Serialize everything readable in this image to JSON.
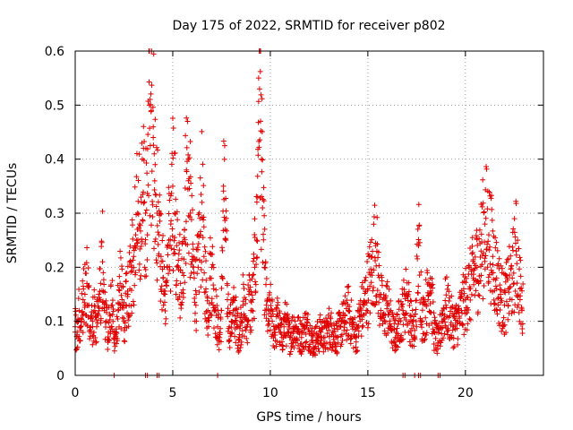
{
  "chart_data": {
    "type": "scatter",
    "title": "Day 175 of 2022, SRMTID for receiver p802",
    "xlabel": "GPS time / hours",
    "ylabel": "SRMTID / TECUs",
    "xlim": [
      0,
      24
    ],
    "ylim": [
      0,
      0.6
    ],
    "xticks": [
      0,
      5,
      10,
      15,
      20
    ],
    "yticks": [
      0,
      0.1,
      0.2,
      0.3,
      0.4,
      0.5,
      0.6
    ],
    "xtick_labels": [
      "0",
      "5",
      "10",
      "15",
      "20"
    ],
    "ytick_labels": [
      "0",
      "0.1",
      "0.2",
      "0.3",
      "0.4",
      "0.5",
      "0.6"
    ],
    "grid": true,
    "marker": "+",
    "color": "#e00000",
    "series": [
      {
        "name": "p802",
        "sample_points": [
          [
            0.0,
            0.09
          ],
          [
            0.1,
            0.08
          ],
          [
            0.2,
            0.12
          ],
          [
            0.3,
            0.1
          ],
          [
            0.4,
            0.14
          ],
          [
            0.5,
            0.15
          ],
          [
            0.6,
            0.17
          ],
          [
            0.7,
            0.13
          ],
          [
            0.8,
            0.11
          ],
          [
            0.9,
            0.1
          ],
          [
            1.0,
            0.12
          ],
          [
            1.1,
            0.09
          ],
          [
            1.2,
            0.15
          ],
          [
            1.3,
            0.17
          ],
          [
            1.4,
            0.21
          ],
          [
            1.5,
            0.12
          ],
          [
            1.6,
            0.1
          ],
          [
            1.7,
            0.08
          ],
          [
            1.8,
            0.11
          ],
          [
            1.9,
            0.13
          ],
          [
            2.0,
            0.06
          ],
          [
            2.1,
            0.08
          ],
          [
            2.2,
            0.12
          ],
          [
            2.3,
            0.17
          ],
          [
            2.4,
            0.14
          ],
          [
            2.5,
            0.1
          ],
          [
            2.6,
            0.13
          ],
          [
            2.7,
            0.15
          ],
          [
            2.8,
            0.16
          ],
          [
            2.9,
            0.2
          ],
          [
            3.0,
            0.22
          ],
          [
            3.1,
            0.26
          ],
          [
            3.2,
            0.3
          ],
          [
            3.3,
            0.28
          ],
          [
            3.4,
            0.32
          ],
          [
            3.5,
            0.42
          ],
          [
            3.6,
            0.3
          ],
          [
            3.7,
            0.26
          ],
          [
            3.8,
            0.5
          ],
          [
            3.9,
            0.49
          ],
          [
            4.0,
            0.44
          ],
          [
            4.1,
            0.39
          ],
          [
            4.2,
            0.3
          ],
          [
            4.3,
            0.26
          ],
          [
            4.4,
            0.22
          ],
          [
            4.5,
            0.18
          ],
          [
            4.6,
            0.15
          ],
          [
            4.7,
            0.2
          ],
          [
            4.8,
            0.25
          ],
          [
            4.9,
            0.28
          ],
          [
            5.0,
            0.35
          ],
          [
            5.1,
            0.3
          ],
          [
            5.2,
            0.24
          ],
          [
            5.3,
            0.2
          ],
          [
            5.4,
            0.17
          ],
          [
            5.5,
            0.19
          ],
          [
            5.6,
            0.27
          ],
          [
            5.7,
            0.38
          ],
          [
            5.8,
            0.36
          ],
          [
            5.9,
            0.3
          ],
          [
            6.0,
            0.22
          ],
          [
            6.1,
            0.18
          ],
          [
            6.2,
            0.15
          ],
          [
            6.3,
            0.2
          ],
          [
            6.4,
            0.26
          ],
          [
            6.5,
            0.32
          ],
          [
            6.6,
            0.22
          ],
          [
            6.7,
            0.16
          ],
          [
            6.8,
            0.12
          ],
          [
            6.9,
            0.18
          ],
          [
            7.0,
            0.2
          ],
          [
            7.1,
            0.16
          ],
          [
            7.2,
            0.12
          ],
          [
            7.3,
            0.09
          ],
          [
            7.4,
            0.07
          ],
          [
            7.5,
            0.12
          ],
          [
            7.6,
            0.35
          ],
          [
            7.7,
            0.27
          ],
          [
            7.8,
            0.14
          ],
          [
            7.9,
            0.09
          ],
          [
            8.0,
            0.1
          ],
          [
            8.1,
            0.12
          ],
          [
            8.2,
            0.11
          ],
          [
            8.3,
            0.09
          ],
          [
            8.4,
            0.07
          ],
          [
            8.5,
            0.1
          ],
          [
            8.6,
            0.13
          ],
          [
            8.7,
            0.11
          ],
          [
            8.8,
            0.09
          ],
          [
            8.9,
            0.15
          ],
          [
            9.0,
            0.12
          ],
          [
            9.1,
            0.14
          ],
          [
            9.2,
            0.2
          ],
          [
            9.3,
            0.25
          ],
          [
            9.35,
            0.33
          ],
          [
            9.4,
            0.55
          ],
          [
            9.45,
            0.53
          ],
          [
            9.5,
            0.47
          ],
          [
            9.55,
            0.4
          ],
          [
            9.6,
            0.31
          ],
          [
            9.7,
            0.2
          ],
          [
            9.8,
            0.13
          ],
          [
            9.9,
            0.1
          ],
          [
            10.0,
            0.12
          ],
          [
            10.1,
            0.1
          ],
          [
            10.2,
            0.08
          ],
          [
            10.3,
            0.09
          ],
          [
            10.4,
            0.11
          ],
          [
            10.5,
            0.08
          ],
          [
            10.6,
            0.07
          ],
          [
            10.7,
            0.09
          ],
          [
            10.8,
            0.1
          ],
          [
            10.9,
            0.08
          ],
          [
            11.0,
            0.07
          ],
          [
            11.2,
            0.09
          ],
          [
            11.4,
            0.08
          ],
          [
            11.6,
            0.07
          ],
          [
            11.8,
            0.09
          ],
          [
            12.0,
            0.08
          ],
          [
            12.2,
            0.06
          ],
          [
            12.4,
            0.07
          ],
          [
            12.6,
            0.08
          ],
          [
            12.8,
            0.07
          ],
          [
            13.0,
            0.09
          ],
          [
            13.2,
            0.08
          ],
          [
            13.4,
            0.07
          ],
          [
            13.6,
            0.09
          ],
          [
            13.8,
            0.1
          ],
          [
            14.0,
            0.12
          ],
          [
            14.2,
            0.09
          ],
          [
            14.4,
            0.07
          ],
          [
            14.6,
            0.11
          ],
          [
            14.8,
            0.13
          ],
          [
            15.0,
            0.16
          ],
          [
            15.2,
            0.19
          ],
          [
            15.4,
            0.24
          ],
          [
            15.6,
            0.15
          ],
          [
            15.8,
            0.11
          ],
          [
            16.0,
            0.13
          ],
          [
            16.2,
            0.09
          ],
          [
            16.4,
            0.07
          ],
          [
            16.6,
            0.1
          ],
          [
            16.8,
            0.12
          ],
          [
            17.0,
            0.15
          ],
          [
            17.2,
            0.1
          ],
          [
            17.4,
            0.07
          ],
          [
            17.6,
            0.24
          ],
          [
            17.8,
            0.1
          ],
          [
            18.0,
            0.13
          ],
          [
            18.2,
            0.18
          ],
          [
            18.4,
            0.08
          ],
          [
            18.6,
            0.06
          ],
          [
            18.8,
            0.1
          ],
          [
            19.0,
            0.13
          ],
          [
            19.2,
            0.11
          ],
          [
            19.4,
            0.09
          ],
          [
            19.6,
            0.1
          ],
          [
            19.8,
            0.12
          ],
          [
            20.0,
            0.14
          ],
          [
            20.2,
            0.16
          ],
          [
            20.4,
            0.18
          ],
          [
            20.6,
            0.2
          ],
          [
            20.8,
            0.23
          ],
          [
            21.0,
            0.28
          ],
          [
            21.2,
            0.26
          ],
          [
            21.4,
            0.22
          ],
          [
            21.6,
            0.18
          ],
          [
            21.8,
            0.15
          ],
          [
            22.0,
            0.13
          ],
          [
            22.2,
            0.16
          ],
          [
            22.4,
            0.18
          ],
          [
            22.6,
            0.23
          ],
          [
            22.8,
            0.16
          ],
          [
            22.9,
            0.12
          ]
        ],
        "zero_points": [
          2.0,
          3.6,
          3.7,
          4.2,
          4.3,
          7.3,
          16.8,
          16.9,
          17.4,
          17.6,
          17.7,
          18.6,
          18.7
        ]
      }
    ]
  }
}
